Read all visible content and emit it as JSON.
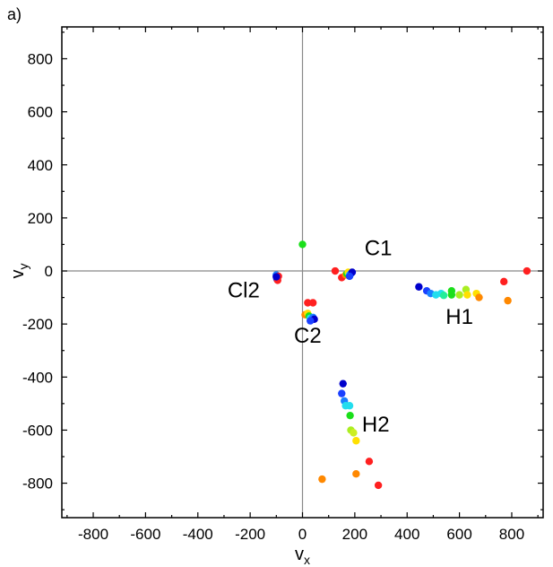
{
  "chart_data": {
    "type": "scatter",
    "panel_label": "a)",
    "xlabel": "v",
    "xlabel_sub": "x",
    "ylabel": "v",
    "ylabel_sub": "y",
    "xlim": [
      -920,
      920
    ],
    "ylim": [
      -930,
      920
    ],
    "xticks": [
      -800,
      -600,
      -400,
      -200,
      0,
      200,
      400,
      600,
      800
    ],
    "yticks": [
      -800,
      -600,
      -400,
      -200,
      0,
      200,
      400,
      600,
      800
    ],
    "zero_lines": true,
    "annotations": [
      {
        "text": "C1",
        "x": 290,
        "y": 60
      },
      {
        "text": "Cl2",
        "x": -225,
        "y": -100
      },
      {
        "text": "C2",
        "x": 20,
        "y": -270
      },
      {
        "text": "H1",
        "x": 600,
        "y": -200
      },
      {
        "text": "H2",
        "x": 280,
        "y": -605
      }
    ],
    "points": [
      {
        "x": 0,
        "y": 100,
        "color": "#1adf1a"
      },
      {
        "x": -100,
        "y": -15,
        "color": "#1a80ff"
      },
      {
        "x": -92,
        "y": -20,
        "color": "#ff2020"
      },
      {
        "x": -98,
        "y": -30,
        "color": "#1a40ff"
      },
      {
        "x": -95,
        "y": -35,
        "color": "#ff2020"
      },
      {
        "x": -100,
        "y": -22,
        "color": "#0000cc"
      },
      {
        "x": 125,
        "y": 0,
        "color": "#ff2020"
      },
      {
        "x": 150,
        "y": -25,
        "color": "#ff2020"
      },
      {
        "x": 165,
        "y": -15,
        "color": "#ff8800"
      },
      {
        "x": 170,
        "y": -10,
        "color": "#1adf1a"
      },
      {
        "x": 175,
        "y": -5,
        "color": "#ffe000"
      },
      {
        "x": 180,
        "y": -15,
        "color": "#22ddee"
      },
      {
        "x": 185,
        "y": -10,
        "color": "#1a80ff"
      },
      {
        "x": 190,
        "y": -5,
        "color": "#0000cc"
      },
      {
        "x": 180,
        "y": -20,
        "color": "#1a40ff"
      },
      {
        "x": 20,
        "y": -120,
        "color": "#ff2020"
      },
      {
        "x": 40,
        "y": -120,
        "color": "#ff2020"
      },
      {
        "x": 10,
        "y": -165,
        "color": "#ff8800"
      },
      {
        "x": 20,
        "y": -160,
        "color": "#ffe000"
      },
      {
        "x": 25,
        "y": -170,
        "color": "#1adf1a"
      },
      {
        "x": 30,
        "y": -178,
        "color": "#22ddee"
      },
      {
        "x": 40,
        "y": -175,
        "color": "#1a80ff"
      },
      {
        "x": 45,
        "y": -182,
        "color": "#0000cc"
      },
      {
        "x": 30,
        "y": -188,
        "color": "#1a40ff"
      },
      {
        "x": 445,
        "y": -60,
        "color": "#0000cc"
      },
      {
        "x": 475,
        "y": -75,
        "color": "#1a40ff"
      },
      {
        "x": 490,
        "y": -85,
        "color": "#1a80ff"
      },
      {
        "x": 510,
        "y": -90,
        "color": "#22ddee"
      },
      {
        "x": 530,
        "y": -85,
        "color": "#22ddee"
      },
      {
        "x": 540,
        "y": -92,
        "color": "#22ee99"
      },
      {
        "x": 570,
        "y": -75,
        "color": "#1adf1a"
      },
      {
        "x": 570,
        "y": -90,
        "color": "#1adf1a"
      },
      {
        "x": 600,
        "y": -90,
        "color": "#aaee22"
      },
      {
        "x": 625,
        "y": -70,
        "color": "#aaee22"
      },
      {
        "x": 630,
        "y": -90,
        "color": "#ffe000"
      },
      {
        "x": 665,
        "y": -85,
        "color": "#ffe000"
      },
      {
        "x": 675,
        "y": -100,
        "color": "#ff8800"
      },
      {
        "x": 770,
        "y": -40,
        "color": "#ff2020"
      },
      {
        "x": 785,
        "y": -112,
        "color": "#ff8800"
      },
      {
        "x": 858,
        "y": 0,
        "color": "#ff2020"
      },
      {
        "x": 155,
        "y": -425,
        "color": "#0000cc"
      },
      {
        "x": 150,
        "y": -462,
        "color": "#1a40ff"
      },
      {
        "x": 160,
        "y": -490,
        "color": "#1a80ff"
      },
      {
        "x": 165,
        "y": -508,
        "color": "#22ddee"
      },
      {
        "x": 180,
        "y": -508,
        "color": "#22ddee"
      },
      {
        "x": 182,
        "y": -545,
        "color": "#1adf1a"
      },
      {
        "x": 185,
        "y": -600,
        "color": "#aaee22"
      },
      {
        "x": 195,
        "y": -610,
        "color": "#ccee22"
      },
      {
        "x": 205,
        "y": -640,
        "color": "#ffe000"
      },
      {
        "x": 255,
        "y": -718,
        "color": "#ff2020"
      },
      {
        "x": 205,
        "y": -765,
        "color": "#ff8800"
      },
      {
        "x": 75,
        "y": -785,
        "color": "#ff8800"
      },
      {
        "x": 290,
        "y": -808,
        "color": "#ff2020"
      }
    ]
  }
}
